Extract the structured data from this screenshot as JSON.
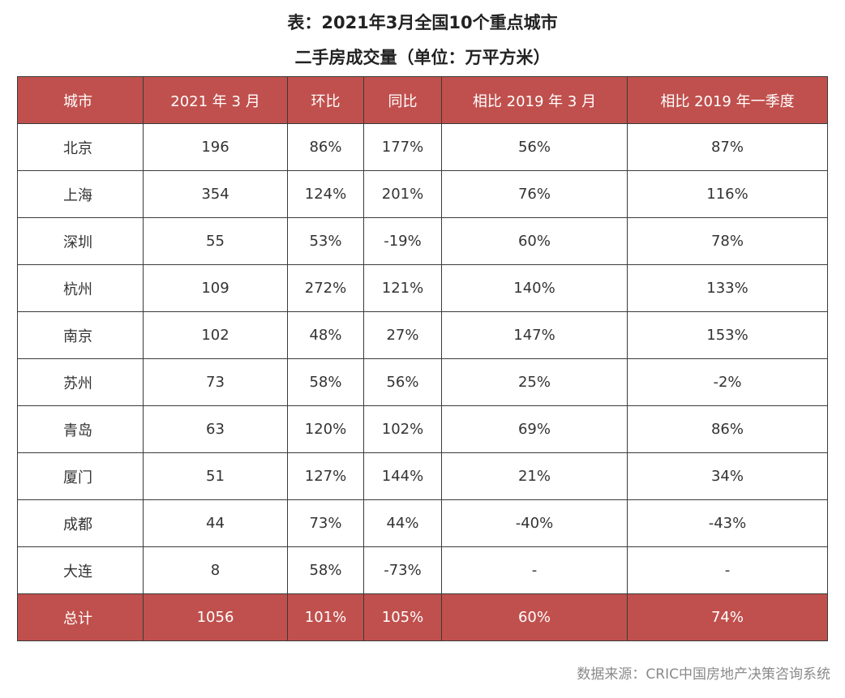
{
  "title": {
    "line1": "表：2021年3月全国10个重点城市",
    "line2": "二手房成交量（单位：万平方米）"
  },
  "colors": {
    "header_bg": "#c0504d",
    "header_text": "#ffffff",
    "border": "#3a3a3a"
  },
  "chart_data": {
    "type": "table",
    "columns": [
      "城市",
      "2021 年 3 月",
      "环比",
      "同比",
      "相比 2019 年  3 月",
      "相比 2019 年一季度"
    ],
    "rows": [
      [
        "北京",
        "196",
        "86%",
        "177%",
        "56%",
        "87%"
      ],
      [
        "上海",
        "354",
        "124%",
        "201%",
        "76%",
        "116%"
      ],
      [
        "深圳",
        "55",
        "53%",
        "-19%",
        "60%",
        "78%"
      ],
      [
        "杭州",
        "109",
        "272%",
        "121%",
        "140%",
        "133%"
      ],
      [
        "南京",
        "102",
        "48%",
        "27%",
        "147%",
        "153%"
      ],
      [
        "苏州",
        "73",
        "58%",
        "56%",
        "25%",
        "-2%"
      ],
      [
        "青岛",
        "63",
        "120%",
        "102%",
        "69%",
        "86%"
      ],
      [
        "厦门",
        "51",
        "127%",
        "144%",
        "21%",
        "34%"
      ],
      [
        "成都",
        "44",
        "73%",
        "44%",
        "-40%",
        "-43%"
      ],
      [
        "大连",
        "8",
        "58%",
        "-73%",
        "-",
        "-"
      ]
    ],
    "total": [
      "总计",
      "1056",
      "101%",
      "105%",
      "60%",
      "74%"
    ]
  },
  "source": "数据来源：CRIC中国房地产决策咨询系统"
}
